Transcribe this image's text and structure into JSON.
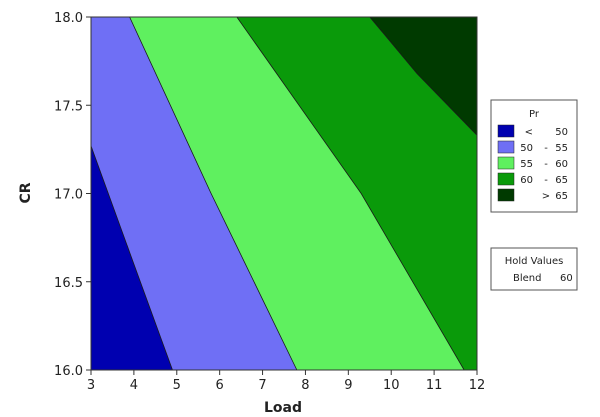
{
  "chart_data": {
    "type": "contour",
    "xlabel": "Load",
    "ylabel": "CR",
    "xlim": [
      3,
      12
    ],
    "ylim": [
      16.0,
      18.0
    ],
    "x_ticks": [
      "3",
      "4",
      "5",
      "6",
      "7",
      "8",
      "9",
      "10",
      "11",
      "12"
    ],
    "y_ticks": [
      "16.0",
      "16.5",
      "17.0",
      "17.5",
      "18.0"
    ],
    "legend": {
      "title": "Pr",
      "position": "right",
      "levels": [
        {
          "low": "<",
          "mid": "",
          "high": "50",
          "color": "#0000b0"
        },
        {
          "low": "50",
          "mid": "-",
          "high": "55",
          "color": "#6f6ff5"
        },
        {
          "low": "55",
          "mid": "-",
          "high": "60",
          "color": "#5ff05f"
        },
        {
          "low": "60",
          "mid": "-",
          "high": "65",
          "color": "#0a9a0a"
        },
        {
          "low": "",
          "mid": ">",
          "high": "65",
          "color": "#003a00"
        }
      ]
    },
    "hold_values": {
      "title": "Hold Values",
      "label": "Blend",
      "value": "60"
    },
    "boundaries": [
      {
        "between": "<50 | 50-55",
        "points": [
          [
            3.0,
            17.27
          ],
          [
            4.0,
            16.6
          ],
          [
            4.9,
            16.0
          ]
        ]
      },
      {
        "between": "50-55 | 55-60",
        "points": [
          [
            3.9,
            18.0
          ],
          [
            5.8,
            17.0
          ],
          [
            7.8,
            16.0
          ]
        ]
      },
      {
        "between": "55-60 | 60-65",
        "points": [
          [
            6.4,
            18.0
          ],
          [
            9.3,
            17.0
          ],
          [
            11.7,
            16.0
          ]
        ]
      },
      {
        "between": "60-65 | >65",
        "points": [
          [
            9.5,
            18.0
          ],
          [
            10.6,
            17.68
          ],
          [
            12.0,
            17.33
          ]
        ]
      }
    ]
  }
}
